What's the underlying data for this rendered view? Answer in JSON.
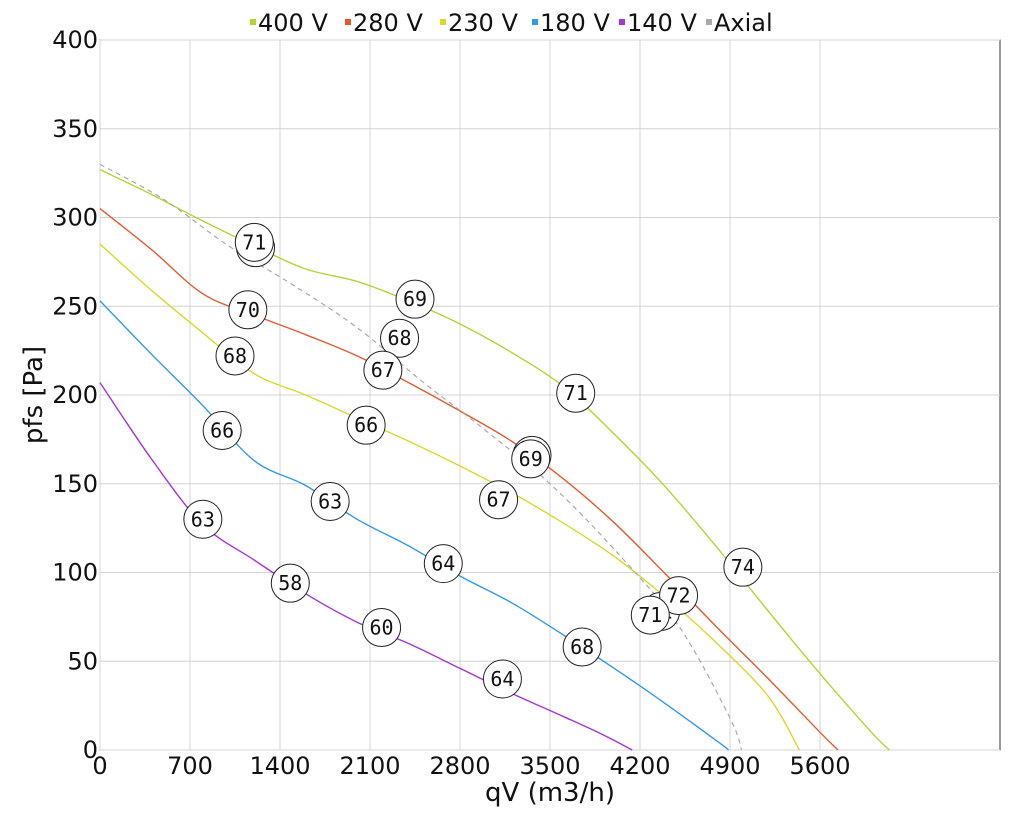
{
  "chart_data": {
    "type": "line",
    "xlabel": "qV (m3/h)",
    "ylabel": "pfs [Pa]",
    "xlim": [
      0,
      7000
    ],
    "ylim": [
      0,
      400
    ],
    "xticks": [
      0,
      700,
      1400,
      2100,
      2800,
      3500,
      4200,
      4900,
      5600
    ],
    "yticks": [
      0,
      50,
      100,
      150,
      200,
      250,
      300,
      350,
      400
    ],
    "grid": true,
    "legend_position": "top-center",
    "series": [
      {
        "name": "400 V",
        "color": "#b5d334",
        "dashed": false,
        "points": [
          [
            0,
            327
          ],
          [
            400,
            313
          ],
          [
            800,
            298
          ],
          [
            1200,
            284
          ],
          [
            1600,
            271
          ],
          [
            2000,
            264
          ],
          [
            2400,
            253
          ],
          [
            2800,
            240
          ],
          [
            3200,
            224
          ],
          [
            3600,
            205
          ],
          [
            4000,
            178
          ],
          [
            4400,
            148
          ],
          [
            4800,
            114
          ],
          [
            5200,
            78
          ],
          [
            5600,
            43
          ],
          [
            6000,
            10
          ],
          [
            6140,
            0
          ]
        ],
        "markers": [
          {
            "x": 1200,
            "y": 286,
            "label": "71"
          },
          {
            "x": 2450,
            "y": 254,
            "label": "69"
          },
          {
            "x": 3700,
            "y": 201,
            "label": "71"
          },
          {
            "x": 5000,
            "y": 103,
            "label": "74"
          }
        ]
      },
      {
        "name": "280 V",
        "color": "#e35a2e",
        "dashed": false,
        "points": [
          [
            0,
            305
          ],
          [
            400,
            282
          ],
          [
            800,
            257
          ],
          [
            1200,
            245
          ],
          [
            1600,
            234
          ],
          [
            2000,
            222
          ],
          [
            2400,
            207
          ],
          [
            2800,
            191
          ],
          [
            3200,
            174
          ],
          [
            3600,
            153
          ],
          [
            4000,
            128
          ],
          [
            4400,
            99
          ],
          [
            4800,
            69
          ],
          [
            5200,
            40
          ],
          [
            5600,
            10
          ],
          [
            5740,
            0
          ]
        ],
        "markers": [
          {
            "x": 1150,
            "y": 248,
            "label": "70"
          },
          {
            "x": 2200,
            "y": 214,
            "label": "67"
          },
          {
            "x": 3350,
            "y": 164,
            "label": "69"
          },
          {
            "x": 4500,
            "y": 87,
            "label": "72"
          }
        ]
      },
      {
        "name": "230 V",
        "color": "#d9d92b",
        "dashed": false,
        "points": [
          [
            0,
            285
          ],
          [
            400,
            259
          ],
          [
            800,
            235
          ],
          [
            1200,
            212
          ],
          [
            1600,
            200
          ],
          [
            2000,
            187
          ],
          [
            2400,
            174
          ],
          [
            2800,
            160
          ],
          [
            3200,
            145
          ],
          [
            3600,
            128
          ],
          [
            4000,
            109
          ],
          [
            4400,
            86
          ],
          [
            4800,
            60
          ],
          [
            5200,
            30
          ],
          [
            5440,
            0
          ]
        ],
        "markers": [
          {
            "x": 1050,
            "y": 222,
            "label": "68"
          },
          {
            "x": 2070,
            "y": 183,
            "label": "66"
          },
          {
            "x": 3100,
            "y": 141,
            "label": "67"
          },
          {
            "x": 4280,
            "y": 76,
            "label": "71"
          }
        ]
      },
      {
        "name": "180 V",
        "color": "#2e9be3",
        "dashed": false,
        "points": [
          [
            0,
            253
          ],
          [
            400,
            223
          ],
          [
            800,
            194
          ],
          [
            1200,
            163
          ],
          [
            1600,
            149
          ],
          [
            2000,
            130
          ],
          [
            2400,
            115
          ],
          [
            2800,
            98
          ],
          [
            3200,
            83
          ],
          [
            3600,
            65
          ],
          [
            4000,
            46
          ],
          [
            4400,
            26
          ],
          [
            4800,
            5
          ],
          [
            4890,
            0
          ]
        ],
        "markers": [
          {
            "x": 950,
            "y": 180,
            "label": "66"
          },
          {
            "x": 1790,
            "y": 140,
            "label": "63"
          },
          {
            "x": 2670,
            "y": 105,
            "label": "64"
          },
          {
            "x": 3750,
            "y": 58,
            "label": "68"
          }
        ]
      },
      {
        "name": "140 V",
        "color": "#a533d9",
        "dashed": false,
        "points": [
          [
            0,
            207
          ],
          [
            400,
            164
          ],
          [
            800,
            127
          ],
          [
            1200,
            107
          ],
          [
            1600,
            88
          ],
          [
            2000,
            72
          ],
          [
            2400,
            60
          ],
          [
            2800,
            46
          ],
          [
            3200,
            32
          ],
          [
            3600,
            19
          ],
          [
            3900,
            9
          ],
          [
            4140,
            0
          ]
        ],
        "markers": [
          {
            "x": 800,
            "y": 130,
            "label": "63"
          },
          {
            "x": 1480,
            "y": 94,
            "label": "58"
          },
          {
            "x": 2190,
            "y": 69,
            "label": "60"
          },
          {
            "x": 3130,
            "y": 40,
            "label": "64"
          }
        ]
      },
      {
        "name": "Axial",
        "color": "#aaaaaa",
        "dashed": true,
        "points": [
          [
            0,
            330
          ],
          [
            500,
            310
          ],
          [
            1000,
            284
          ],
          [
            1500,
            262
          ],
          [
            2000,
            238
          ],
          [
            2500,
            208
          ],
          [
            3000,
            180
          ],
          [
            3500,
            150
          ],
          [
            4000,
            113
          ],
          [
            4500,
            70
          ],
          [
            4900,
            18
          ],
          [
            4990,
            0
          ]
        ],
        "markers": []
      }
    ],
    "extra_markers": [
      {
        "x": 2330,
        "y": 232,
        "label": "68"
      },
      {
        "x": 4360,
        "y": 78,
        "label": "71"
      },
      {
        "x": 1210,
        "y": 283,
        "label": "71"
      },
      {
        "x": 3360,
        "y": 166,
        "label": "69"
      }
    ]
  }
}
